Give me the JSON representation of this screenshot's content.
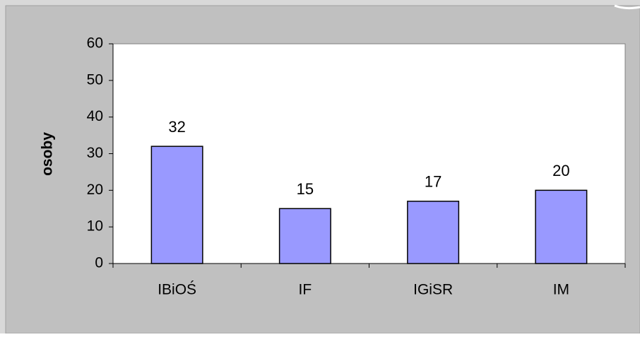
{
  "chart_data": {
    "type": "bar",
    "y_label": "osoby",
    "categories": [
      "IBiOŚ",
      "IF",
      "IGiSR",
      "IM"
    ],
    "values": [
      32,
      15,
      17,
      20
    ],
    "color": "#9999ff",
    "ylim": [
      0,
      60
    ],
    "yticks": [
      0,
      10,
      20,
      30,
      40,
      50,
      60
    ],
    "grid": false
  }
}
